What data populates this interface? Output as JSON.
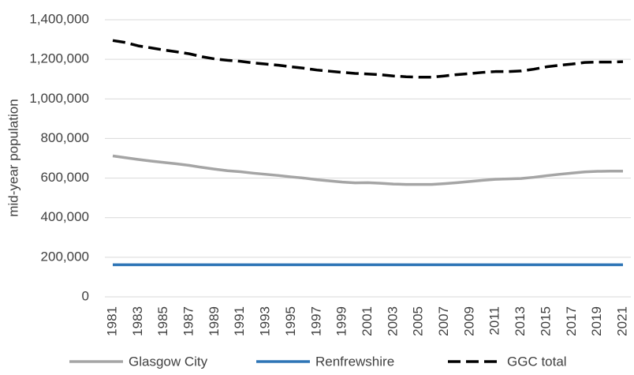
{
  "chart_data": {
    "type": "line",
    "y_label": "mid-year population",
    "categories": [
      "1981",
      null,
      "1983",
      null,
      "1985",
      null,
      "1987",
      null,
      "1989",
      null,
      "1991",
      null,
      "1993",
      null,
      "1995",
      null,
      "1997",
      null,
      "1999",
      null,
      "2001",
      null,
      "2003",
      null,
      "2005",
      null,
      "2007",
      null,
      "2009",
      null,
      "2011",
      null,
      "2013",
      null,
      "2015",
      null,
      "2017",
      null,
      "2019",
      null,
      "2021"
    ],
    "series": [
      {
        "name": "Glasgow City",
        "color": "#a5a5a5",
        "dash": false,
        "values": [
          712000,
          703000,
          694000,
          686000,
          679000,
          672000,
          664000,
          654000,
          645000,
          637000,
          632000,
          625000,
          619000,
          613000,
          606000,
          600000,
          592000,
          586000,
          580000,
          576000,
          577000,
          574000,
          570000,
          568000,
          568000,
          568000,
          572000,
          577000,
          583000,
          589000,
          594000,
          596000,
          598000,
          604000,
          612000,
          619000,
          625000,
          631000,
          634000,
          635000,
          635000
        ]
      },
      {
        "name": "Renfrewshire",
        "color": "#2e75b6",
        "dash": false,
        "values": [
          162000,
          162000,
          162000,
          162000,
          162000,
          162000,
          162000,
          162000,
          162000,
          162000,
          162000,
          162000,
          162000,
          162000,
          162000,
          162000,
          162000,
          162000,
          162000,
          162000,
          162000,
          162000,
          162000,
          162000,
          162000,
          162000,
          162000,
          162000,
          162000,
          162000,
          162000,
          162000,
          162000,
          162000,
          162000,
          162000,
          162000,
          162000,
          162000,
          162000,
          162000
        ]
      },
      {
        "name": "GGC total",
        "color": "#000000",
        "dash": true,
        "values": [
          1295000,
          1285000,
          1268000,
          1258000,
          1247000,
          1238000,
          1228000,
          1213000,
          1202000,
          1195000,
          1190000,
          1182000,
          1176000,
          1170000,
          1162000,
          1155000,
          1146000,
          1140000,
          1134000,
          1129000,
          1126000,
          1122000,
          1116000,
          1112000,
          1110000,
          1110000,
          1116000,
          1123000,
          1128000,
          1134000,
          1138000,
          1138000,
          1141000,
          1150000,
          1162000,
          1170000,
          1176000,
          1184000,
          1186000,
          1186000,
          1188000
        ]
      }
    ],
    "ylim": [
      0,
      1400000
    ],
    "yticks": [
      0,
      {
        "value": 200000,
        "label": "200,000"
      },
      {
        "value": 400000,
        "label": "400,000"
      },
      {
        "value": 600000,
        "label": "600,000"
      },
      {
        "value": 800000,
        "label": "800,000"
      },
      {
        "value": 1000000,
        "label": "1,000,000"
      },
      {
        "value": 1200000,
        "label": "1,200,000"
      },
      {
        "value": 1400000,
        "label": "1,400,000"
      }
    ],
    "grid": true,
    "legend": "bottom"
  }
}
